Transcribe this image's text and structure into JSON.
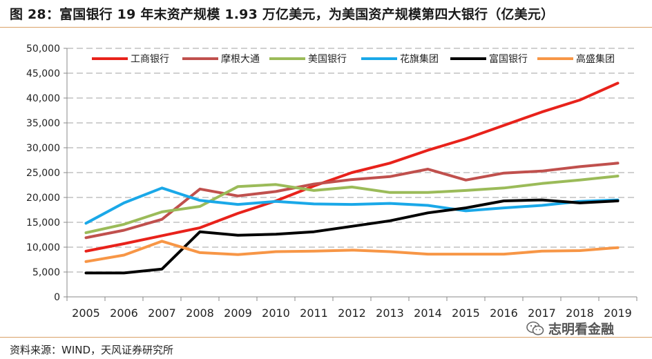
{
  "header": {
    "title": "图 28：富国银行 19 年末资产规模 1.93 万亿美元，为美国资产规模第四大银行（亿美元）"
  },
  "footer": {
    "source": "资料来源：WIND，天风证券研究所"
  },
  "watermark": {
    "text": "志明看金融",
    "icon": "wechat-icon"
  },
  "chart_data": {
    "type": "line",
    "title": "",
    "xlabel": "",
    "ylabel": "",
    "ylim": [
      0,
      50000
    ],
    "yticks": [
      0,
      5000,
      10000,
      15000,
      20000,
      25000,
      30000,
      35000,
      40000,
      45000,
      50000
    ],
    "ytick_labels": [
      "0",
      "5,000",
      "10,000",
      "15,000",
      "20,000",
      "25,000",
      "30,000",
      "35,000",
      "40,000",
      "45,000",
      "50,000"
    ],
    "grid": "horizontal-dashed",
    "legend_position": "top",
    "categories": [
      "2005",
      "2006",
      "2007",
      "2008",
      "2009",
      "2010",
      "2011",
      "2012",
      "2013",
      "2014",
      "2015",
      "2016",
      "2017",
      "2018",
      "2019"
    ],
    "series": [
      {
        "name": "工商银行",
        "color": "#e8221b",
        "values": [
          9200,
          10700,
          12300,
          13900,
          16800,
          19300,
          22300,
          25000,
          26900,
          29500,
          31800,
          34500,
          37200,
          39600,
          43000
        ]
      },
      {
        "name": "摩根大通",
        "color": "#c0504d",
        "values": [
          11900,
          13400,
          15600,
          21700,
          20300,
          21200,
          22700,
          23600,
          24200,
          25700,
          23500,
          24900,
          25300,
          26200,
          26900
        ]
      },
      {
        "name": "美国银行",
        "color": "#9bbb59",
        "values": [
          12900,
          14600,
          17100,
          18200,
          22200,
          22600,
          21400,
          22100,
          21000,
          21000,
          21400,
          21900,
          22800,
          23500,
          24300
        ]
      },
      {
        "name": "花旗集团",
        "color": "#1aa8e8",
        "values": [
          14800,
          18900,
          21900,
          19400,
          18600,
          19200,
          18700,
          18600,
          18800,
          18400,
          17300,
          17900,
          18400,
          19200,
          19500
        ]
      },
      {
        "name": "富国银行",
        "color": "#000000",
        "values": [
          4800,
          4800,
          5600,
          13100,
          12400,
          12600,
          13100,
          14200,
          15300,
          16900,
          17900,
          19300,
          19500,
          18900,
          19300
        ]
      },
      {
        "name": "高盛集团",
        "color": "#f79646",
        "values": [
          7100,
          8400,
          11200,
          8900,
          8500,
          9100,
          9200,
          9400,
          9100,
          8600,
          8600,
          8600,
          9200,
          9300,
          9900
        ]
      }
    ]
  }
}
